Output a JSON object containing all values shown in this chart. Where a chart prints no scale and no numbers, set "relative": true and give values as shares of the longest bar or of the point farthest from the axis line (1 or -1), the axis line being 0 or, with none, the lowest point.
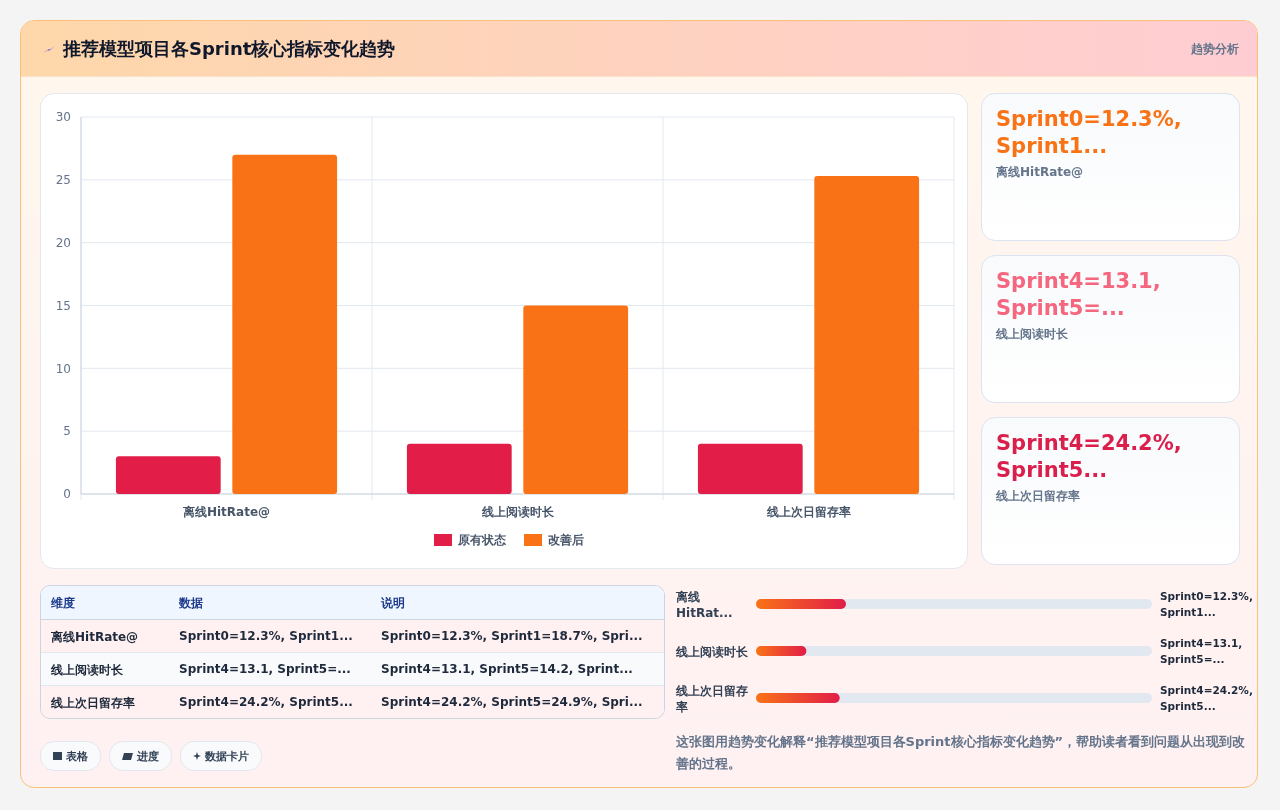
{
  "chart_data": [
    {
      "type": "bar",
      "title": "推荐模型项目各Sprint核心指标变化趋势",
      "categories": [
        "离线HitRate@",
        "线上阅读时长",
        "线上次日留存率"
      ],
      "series": [
        {
          "name": "原有状态",
          "color": "#e11d48",
          "values": [
            3,
            4,
            4
          ]
        },
        {
          "name": "改善后",
          "color": "#f97316",
          "values": [
            27,
            15,
            25.3
          ]
        }
      ],
      "ylim": [
        0,
        30
      ],
      "yticks": [
        0,
        5,
        10,
        15,
        20,
        25,
        30
      ],
      "grid": true,
      "legend": "bottom",
      "annotations": [
        "趋势分析",
        "这张图用趋势变化解释“推荐模型项目各Sprint核心指标变化趋势”，帮助读者看到问题从出现到改善的过程。",
        "表格",
        "进度",
        "数据卡片"
      ]
    },
    {
      "type": "other",
      "annotations": [
        "Sprint0=12.3%, Sprint1...",
        "离线HitRate@",
        "Sprint4=13.1, Sprint5=...",
        "线上阅读时长",
        "Sprint4=24.2%, Sprint5...",
        "线上次日留存率"
      ],
      "colors": [
        "#f97316",
        "#f4677f",
        "#db1f4c"
      ]
    },
    {
      "type": "other",
      "categories": [
        "维度",
        "数据",
        "说明"
      ],
      "cell_labels": [
        [
          "离线HitRate@",
          "Sprint0=12.3%, Sprint1...",
          "Sprint0=12.3%, Sprint1=18.7%, Spri..."
        ],
        [
          "线上阅读时长",
          "Sprint4=13.1, Sprint5=...",
          "Sprint4=13.1, Sprint5=14.2, Sprint..."
        ],
        [
          "线上次日留存率",
          "Sprint4=24.2%, Sprint5...",
          "Sprint4=24.2%, Sprint5=24.9%, Spri..."
        ]
      ]
    },
    {
      "type": "bar",
      "orientation": "horizontal",
      "relative": true,
      "categories": [
        "离线HitRat...",
        "线上阅读时长",
        "线上次日留存率"
      ],
      "values": [
        1,
        0.56,
        0.93
      ],
      "color": "#e11d48",
      "annotations": [
        "Sprint0=12.3%, Sprint1...",
        "Sprint4=13.1, Sprint5=...",
        "Sprint4=24.2%, Sprint5..."
      ]
    }
  ]
}
